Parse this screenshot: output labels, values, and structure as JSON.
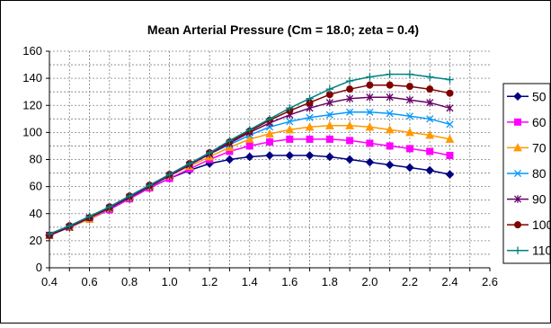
{
  "chart_data": {
    "type": "line",
    "title": "Mean Arterial Pressure (Cm = 18.0; zeta = 0.4)",
    "xlabel": "",
    "ylabel": "",
    "xlim": [
      0.4,
      2.6
    ],
    "ylim": [
      0,
      160
    ],
    "x_ticks": [
      "0.4",
      "0.6",
      "0.8",
      "1.0",
      "1.2",
      "1.4",
      "1.6",
      "1.8",
      "2.0",
      "2.2",
      "2.4",
      "2.6"
    ],
    "y_ticks": [
      "0",
      "20",
      "40",
      "60",
      "80",
      "100",
      "120",
      "140",
      "160"
    ],
    "grid": true,
    "legend": "right",
    "x": [
      0.4,
      0.5,
      0.6,
      0.7,
      0.8,
      0.9,
      1.0,
      1.1,
      1.2,
      1.3,
      1.4,
      1.5,
      1.6,
      1.7,
      1.8,
      1.9,
      2.0,
      2.1,
      2.2,
      2.3,
      2.4
    ],
    "series": [
      {
        "name": "50",
        "color": "#000080",
        "marker": "diamond",
        "values": [
          24,
          30,
          36,
          43,
          51,
          59,
          66,
          72,
          77,
          80,
          82,
          83,
          83,
          83,
          82,
          80,
          78,
          76,
          74,
          72,
          69
        ]
      },
      {
        "name": "60",
        "color": "#FF00FF",
        "marker": "square",
        "values": [
          24,
          30,
          36,
          43,
          51,
          59,
          66,
          73,
          80,
          86,
          90,
          93,
          95,
          95,
          95,
          94,
          92,
          90,
          88,
          86,
          83
        ]
      },
      {
        "name": "70",
        "color": "#FF9900",
        "marker": "triangle",
        "values": [
          24,
          30,
          36,
          44,
          52,
          60,
          68,
          75,
          82,
          89,
          95,
          99,
          102,
          104,
          105,
          105,
          104,
          102,
          100,
          98,
          95
        ]
      },
      {
        "name": "80",
        "color": "#0099FF",
        "marker": "x",
        "values": [
          24,
          30,
          37,
          44,
          52,
          60,
          68,
          76,
          84,
          91,
          98,
          104,
          108,
          111,
          113,
          115,
          115,
          114,
          112,
          110,
          106
        ]
      },
      {
        "name": "90",
        "color": "#660066",
        "marker": "star",
        "values": [
          24,
          30,
          37,
          44,
          52,
          60,
          68,
          76,
          84,
          92,
          100,
          107,
          113,
          118,
          122,
          125,
          126,
          126,
          124,
          122,
          118
        ]
      },
      {
        "name": "100",
        "color": "#800000",
        "marker": "circle",
        "values": [
          24,
          31,
          37,
          45,
          53,
          61,
          69,
          77,
          85,
          93,
          101,
          109,
          116,
          122,
          128,
          132,
          135,
          135,
          134,
          132,
          129
        ]
      },
      {
        "name": "110",
        "color": "#008080",
        "marker": "plus",
        "values": [
          25,
          31,
          38,
          45,
          53,
          61,
          69,
          77,
          85,
          94,
          102,
          110,
          118,
          125,
          132,
          138,
          141,
          143,
          143,
          141,
          139
        ]
      }
    ]
  }
}
